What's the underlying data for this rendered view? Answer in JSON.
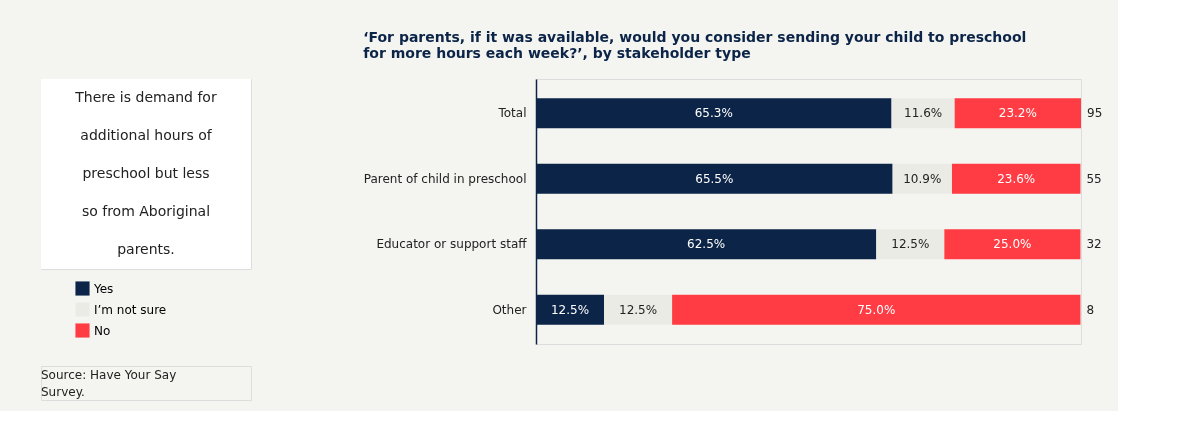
{
  "chart_data": [
    {
      "type": "other",
      "annotations": [
        "There is demand for additional hours of preschool but less so from Aboriginal parents."
      ]
    },
    {
      "type": "bar",
      "orientation": "horizontal",
      "stacked": true,
      "legend": "left",
      "title": "‘For parents, if it was available, would you consider sending your child to preschool for more hours each week?’, by stakeholder type",
      "categories": [
        "Total",
        "Parent of child in preschool",
        "Educator or support staff",
        "Other"
      ],
      "series": [
        {
          "name": "Yes",
          "color": "#0b2447",
          "values": [
            65.3,
            65.5,
            62.5,
            12.5
          ],
          "value_labels": [
            "65.3%",
            "65.5%",
            "62.5%",
            "12.5%"
          ]
        },
        {
          "name": "I’m not sure",
          "color": "#ebebe6",
          "values": [
            11.6,
            10.9,
            12.5,
            12.5
          ],
          "value_labels": [
            "11.6%",
            "10.9%",
            "12.5%",
            "12.5%"
          ]
        },
        {
          "name": "No",
          "color": "#ff3c43",
          "values": [
            23.2,
            23.6,
            25.0,
            75.0
          ],
          "value_labels": [
            "23.2%",
            "23.6%",
            "25.0%",
            "75.0%"
          ]
        }
      ],
      "annotations": [
        "95",
        "55",
        "32",
        "8",
        "Source: Have Your Say Survey."
      ]
    }
  ]
}
